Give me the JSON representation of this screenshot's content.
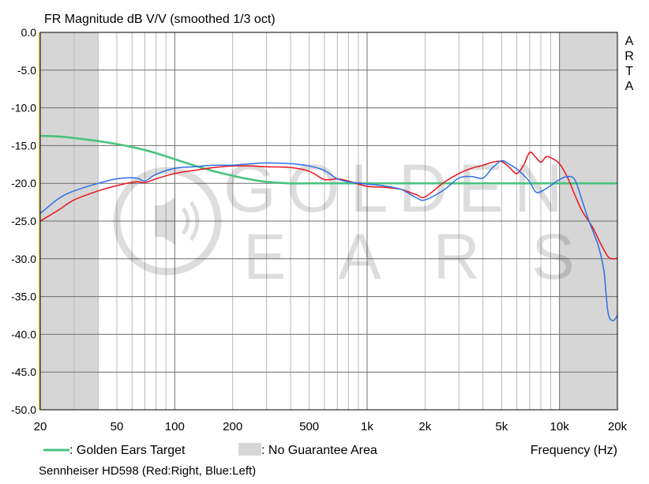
{
  "chart_data": {
    "type": "line",
    "title": "FR Magnitude dB V/V (smoothed 1/3 oct)",
    "xlabel": "Frequency (Hz)",
    "ylabel": "",
    "x_scale": "log",
    "xlim": [
      20,
      20000
    ],
    "ylim": [
      -50,
      0
    ],
    "grid": true,
    "y_ticks": [
      "0.0",
      "-5.0",
      "-10.0",
      "-15.0",
      "-20.0",
      "-25.0",
      "-30.0",
      "-35.0",
      "-40.0",
      "-45.0",
      "-50.0"
    ],
    "y_tick_values": [
      0,
      -5,
      -10,
      -15,
      -20,
      -25,
      -30,
      -35,
      -40,
      -45,
      -50
    ],
    "x_ticks": [
      "20",
      "50",
      "100",
      "200",
      "500",
      "1k",
      "2k",
      "5k",
      "10k",
      "20k"
    ],
    "x_tick_values": [
      20,
      50,
      100,
      200,
      500,
      1000,
      2000,
      5000,
      10000,
      20000
    ],
    "side_label": [
      "A",
      "R",
      "T",
      "A"
    ],
    "shaded_regions": [
      {
        "from": 20,
        "to": 40,
        "color": "#d6d6d6"
      },
      {
        "from": 10000,
        "to": 20000,
        "color": "#d6d6d6"
      }
    ],
    "watermark": {
      "line1": "GOLDEN",
      "line2": "EARS"
    },
    "legend": [
      {
        "swatch": "line",
        "color": "#4ac27e",
        "label": ": Golden Ears Target"
      },
      {
        "swatch": "box",
        "color": "#d6d6d6",
        "label": ": No Guarantee Area"
      }
    ],
    "subtitle": "Sennheiser HD598 (Red:Right, Blue:Left)",
    "series": [
      {
        "color": "#4ac27e",
        "x": [
          20,
          25,
          30,
          40,
          50,
          63,
          80,
          100,
          125,
          160,
          200,
          250,
          300,
          400,
          500,
          630,
          800,
          1000,
          2000,
          5000,
          10000,
          20000
        ],
        "values": [
          -13.7,
          -13.8,
          -14.0,
          -14.4,
          -14.8,
          -15.3,
          -16.0,
          -16.8,
          -17.6,
          -18.4,
          -19.0,
          -19.5,
          -19.8,
          -20.0,
          -20.0,
          -20.0,
          -20.0,
          -20.0,
          -20.0,
          -20.0,
          -20.0,
          -20.0
        ]
      },
      {
        "color": "#e8141c",
        "x": [
          20,
          25,
          30,
          40,
          50,
          63,
          70,
          80,
          100,
          125,
          160,
          200,
          250,
          300,
          400,
          500,
          600,
          700,
          800,
          1000,
          1200,
          1500,
          1800,
          2000,
          2500,
          3000,
          3500,
          4000,
          4500,
          5000,
          5500,
          6000,
          6500,
          7000,
          7500,
          8000,
          8500,
          9000,
          10000,
          11000,
          12000,
          13000,
          14000,
          15000,
          16000,
          17000,
          18000,
          19000,
          20000
        ],
        "values": [
          -25.0,
          -23.5,
          -22.2,
          -21.0,
          -20.3,
          -19.8,
          -19.9,
          -19.4,
          -18.7,
          -18.3,
          -17.9,
          -17.7,
          -17.7,
          -17.8,
          -17.9,
          -18.4,
          -19.5,
          -19.4,
          -19.7,
          -20.4,
          -20.5,
          -20.8,
          -21.5,
          -21.8,
          -19.9,
          -18.7,
          -18.0,
          -17.6,
          -17.2,
          -17.1,
          -17.9,
          -18.7,
          -17.6,
          -15.9,
          -16.5,
          -17.2,
          -16.5,
          -16.6,
          -17.4,
          -19.2,
          -21.5,
          -23.5,
          -24.8,
          -26.0,
          -27.5,
          -28.8,
          -29.8,
          -30.0,
          -29.9
        ]
      },
      {
        "color": "#2e6fe6",
        "x": [
          20,
          25,
          30,
          40,
          50,
          63,
          70,
          80,
          100,
          125,
          160,
          200,
          250,
          300,
          400,
          500,
          600,
          700,
          800,
          1000,
          1200,
          1500,
          1800,
          2000,
          2500,
          3000,
          3500,
          4000,
          4500,
          5000,
          5500,
          6000,
          6500,
          7000,
          7500,
          8000,
          9000,
          10000,
          11000,
          12000,
          13000,
          14000,
          15000,
          16000,
          17000,
          17500,
          18000,
          19000,
          20000
        ],
        "values": [
          -24.0,
          -22.0,
          -21.0,
          -20.0,
          -19.4,
          -19.3,
          -19.7,
          -18.8,
          -18.0,
          -17.8,
          -17.6,
          -17.6,
          -17.4,
          -17.3,
          -17.4,
          -17.7,
          -18.3,
          -19.4,
          -19.8,
          -20.1,
          -20.3,
          -20.8,
          -21.9,
          -22.2,
          -20.9,
          -19.3,
          -19.1,
          -19.3,
          -17.9,
          -17.0,
          -17.5,
          -18.1,
          -18.9,
          -19.8,
          -21.1,
          -21.1,
          -20.3,
          -19.5,
          -19.1,
          -19.5,
          -22.0,
          -24.5,
          -26.5,
          -28.5,
          -31.5,
          -35.0,
          -37.5,
          -38.2,
          -37.5
        ]
      }
    ]
  }
}
